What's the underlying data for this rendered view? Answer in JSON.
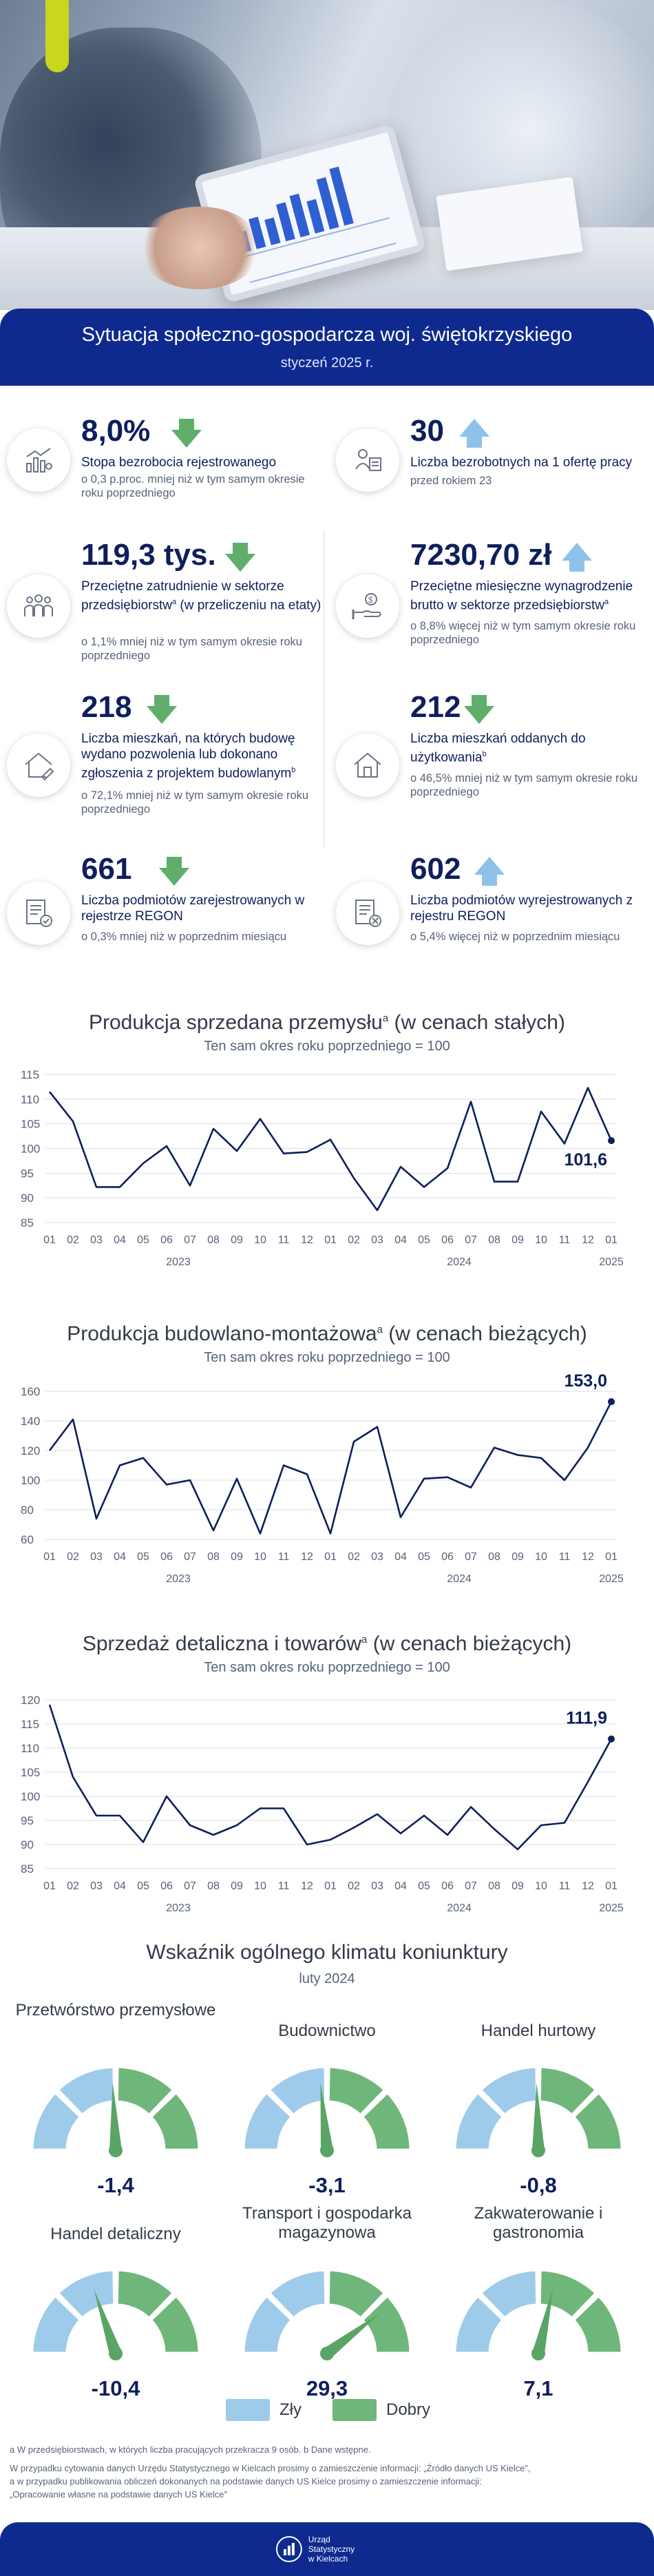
{
  "header": {
    "title": "Sytuacja społeczno-gospodarcza woj. świętokrzyskiego",
    "period": "styczeń 2025 r."
  },
  "colors": {
    "navy": "#0f2a8f",
    "arrow_down": "#5faf6a",
    "arrow_up": "#8ec2ea",
    "line": "#0d1f5c",
    "bad": "#9ecbea",
    "good": "#6fb67a"
  },
  "kpis": [
    {
      "value": "8,0%",
      "trend": "down",
      "icon": "chart-user-icon",
      "desc": "Stopa bezrobocia rejestrowanego",
      "note": "o 0,3 p.proc. mniej niż w tym samym okresie roku poprzedniego"
    },
    {
      "value": "30",
      "trend": "up",
      "icon": "job-seekers-icon",
      "desc": "Liczba bezrobotnych na 1 ofertę pracy",
      "note": "przed rokiem 23"
    },
    {
      "value": "119,3 tys.",
      "trend": "down",
      "icon": "employees-icon",
      "desc": "Przeciętne zatrudnienie w sektorze przedsiębiorstw",
      "desc_sup": "a",
      "desc_tail": " (w przeliczeniu na etaty)",
      "note": "o 1,1% mniej niż w tym samym okresie roku poprzedniego"
    },
    {
      "value": "7230,70 zł",
      "trend": "up",
      "icon": "salary-hand-icon",
      "desc": "Przeciętne miesięczne wynagrodzenie brutto w sektorze przedsiębiorstw",
      "desc_sup": "a",
      "desc_tail": "",
      "note": "o 8,8% więcej niż w tym samym okresie roku poprzedniego"
    },
    {
      "value": "218",
      "trend": "down",
      "icon": "house-permit-icon",
      "desc": "Liczba mieszkań, na których budowę wydano pozwolenia lub dokonano zgłoszenia z projektem budowlanym",
      "desc_sup": "b",
      "desc_tail": "",
      "note": "o 72,1% mniej niż w tym samym okresie roku poprzedniego"
    },
    {
      "value": "212",
      "trend": "down",
      "icon": "house-icon",
      "desc": "Liczba mieszkań oddanych do użytkowania",
      "desc_sup": "b",
      "desc_tail": "",
      "note": "o 46,5% mniej niż w tym samym okresie roku poprzedniego"
    },
    {
      "value": "661",
      "trend": "down",
      "icon": "registry-add-icon",
      "desc": "Liczba podmiotów zarejestrowanych w rejestrze REGON",
      "note": "o 0,3% mniej niż w poprzednim miesiącu"
    },
    {
      "value": "602",
      "trend": "up",
      "icon": "registry-remove-icon",
      "desc": "Liczba podmiotów wyrejestrowanych z rejestru REGON",
      "note": "o 5,4% więcej niż w poprzednim miesiącu"
    }
  ],
  "chart_data": [
    {
      "type": "line",
      "title": "Produkcja sprzedana przemysłu",
      "title_sup": "a",
      "title_tail": " (w cenach stałych)",
      "subtitle": "Ten sam okres roku poprzedniego = 100",
      "x": [
        "01",
        "02",
        "03",
        "04",
        "05",
        "06",
        "07",
        "08",
        "09",
        "10",
        "11",
        "12",
        "01",
        "02",
        "03",
        "04",
        "05",
        "06",
        "07",
        "08",
        "09",
        "10",
        "11",
        "12",
        "01"
      ],
      "year_labels": [
        "2023",
        "2024",
        "2025"
      ],
      "values": [
        111.5,
        105.5,
        92.2,
        92.2,
        97,
        100.5,
        92.5,
        104,
        99.5,
        106,
        99,
        99.3,
        101.8,
        94,
        87.5,
        96.3,
        92.2,
        96,
        109.5,
        93.3,
        93.3,
        107.5,
        101,
        112.3,
        101.6
      ],
      "last_label": "101,6",
      "ylim": [
        85,
        115
      ],
      "yticks": [
        85,
        90,
        95,
        100,
        105,
        110,
        115
      ],
      "grid": true
    },
    {
      "type": "line",
      "title": "Produkcja budowlano-montażowa",
      "title_sup": "a",
      "title_tail": " (w cenach bieżących)",
      "subtitle": "Ten sam okres roku poprzedniego = 100",
      "x": [
        "01",
        "02",
        "03",
        "04",
        "05",
        "06",
        "07",
        "08",
        "09",
        "10",
        "11",
        "12",
        "01",
        "02",
        "03",
        "04",
        "05",
        "06",
        "07",
        "08",
        "09",
        "10",
        "11",
        "12",
        "01"
      ],
      "year_labels": [
        "2023",
        "2024",
        "2025"
      ],
      "values": [
        120,
        141,
        74,
        110,
        115,
        97,
        100,
        66,
        101,
        64,
        110,
        104,
        64,
        126,
        136,
        75,
        101,
        102,
        95,
        122,
        117,
        115,
        100,
        122,
        153
      ],
      "last_label": "153,0",
      "ylim": [
        60,
        160
      ],
      "yticks": [
        60,
        80,
        100,
        120,
        140,
        160
      ],
      "grid": true
    },
    {
      "type": "line",
      "title": "Sprzedaż detaliczna i towarów",
      "title_sup": "a",
      "title_tail": " (w cenach bieżących)",
      "subtitle": "Ten sam okres roku poprzedniego = 100",
      "x": [
        "01",
        "02",
        "03",
        "04",
        "05",
        "06",
        "07",
        "08",
        "09",
        "10",
        "11",
        "12",
        "01",
        "02",
        "03",
        "04",
        "05",
        "06",
        "07",
        "08",
        "09",
        "10",
        "11",
        "12",
        "01"
      ],
      "year_labels": [
        "2023",
        "2024",
        "2025"
      ],
      "values": [
        119,
        104,
        96,
        96,
        90.5,
        100,
        94,
        92,
        94,
        97.5,
        97.5,
        90,
        91,
        93.5,
        96.3,
        92.3,
        96,
        92,
        97.8,
        93.2,
        89,
        94,
        94.5,
        103,
        111.9
      ],
      "last_label": "111,9",
      "ylim": [
        85,
        120
      ],
      "yticks": [
        85,
        90,
        95,
        100,
        105,
        110,
        115,
        120
      ],
      "grid": true
    }
  ],
  "climate": {
    "title": "Wskaźnik ogólnego klimatu koniunktury",
    "period": "luty 2024",
    "legend": {
      "bad": "Zły",
      "good": "Dobry"
    },
    "gauges": [
      {
        "name": "Przetwórstwo przemysłowe",
        "value": -1.4,
        "label": "-1,4"
      },
      {
        "name": "Budownictwo",
        "value": -3.1,
        "label": "-3,1"
      },
      {
        "name": "Handel hurtowy",
        "value": -0.8,
        "label": "-0,8"
      },
      {
        "name": "Handel detaliczny",
        "value": -10.4,
        "label": "-10,4"
      },
      {
        "name": "Transport i gospodarka magazynowa",
        "value": 29.3,
        "label": "29,3"
      },
      {
        "name": "Zakwaterowanie i gastronomia",
        "value": 7.1,
        "label": "7,1"
      }
    ]
  },
  "footnotes": {
    "a": "a W przedsiębiorstwach, w których liczba pracujących przekracza 9 osób. b Dane wstępne.",
    "cite1": "W przypadku cytowania danych Urzędu Statystycznego w Kielcach prosimy o zamieszczenie informacji: „Źródło danych US Kielce”,",
    "cite2": "a w przypadku publikowania obliczeń dokonanych na podstawie danych US Kielce prosimy o zamieszczenie informacji:",
    "cite3": "„Opracowanie własne na podstawie danych US Kielce”"
  },
  "footer": {
    "logo_line1": "Urząd Statystyczny",
    "logo_line2": "w Kielcach"
  }
}
